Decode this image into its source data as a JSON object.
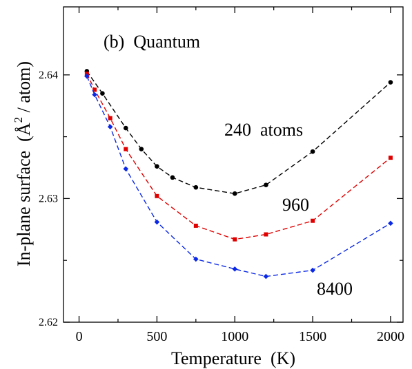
{
  "chart_data": {
    "type": "line",
    "panel_label": "(b)  Quantum",
    "xlabel": "Temperature  (K)",
    "ylabel_prefix": "In-plane surface  (",
    "ylabel_unit_letter": "Å",
    "ylabel_superscript": "2",
    "ylabel_suffix": " / atom)",
    "xlim": [
      -100,
      2080
    ],
    "ylim": [
      2.62,
      2.6455
    ],
    "x_major_ticks": [
      0,
      500,
      1000,
      1500,
      2000
    ],
    "x_tick_labels": [
      "0",
      "500",
      "1000",
      "1500",
      "2000"
    ],
    "x_minor_ticks": [
      250,
      750,
      1250,
      1750
    ],
    "y_major_ticks": [
      2.62,
      2.63,
      2.64
    ],
    "y_tick_labels": [
      "2.62",
      "2.63",
      "2.64"
    ],
    "y_minor_ticks": [
      2.625,
      2.635
    ],
    "grid": false,
    "legend": "none",
    "series": [
      {
        "name": "240  atoms",
        "color": "#000000",
        "marker": "circle",
        "x": [
          50,
          150,
          300,
          400,
          500,
          600,
          750,
          1000,
          1200,
          1500,
          2000
        ],
        "y": [
          2.6403,
          2.6385,
          2.6357,
          2.634,
          2.6326,
          2.6317,
          2.6309,
          2.6304,
          2.6311,
          2.6338,
          2.6394
        ]
      },
      {
        "name": "960",
        "color": "#e00000",
        "marker": "square",
        "x": [
          50,
          100,
          200,
          300,
          500,
          750,
          1000,
          1200,
          1500,
          2000
        ],
        "y": [
          2.6401,
          2.6388,
          2.6365,
          2.634,
          2.6302,
          2.6278,
          2.6267,
          2.6271,
          2.6282,
          2.6333
        ]
      },
      {
        "name": "8400",
        "color": "#0a28e6",
        "marker": "diamond",
        "x": [
          50,
          100,
          200,
          300,
          500,
          750,
          1000,
          1200,
          1500,
          2000
        ],
        "y": [
          2.6399,
          2.6384,
          2.6358,
          2.6324,
          2.6281,
          2.6251,
          2.6243,
          2.6237,
          2.6242,
          2.628
        ]
      }
    ],
    "annotations": [
      {
        "text": "240  atoms",
        "series": 0
      },
      {
        "text": "960",
        "series": 1
      },
      {
        "text": "8400",
        "series": 2
      }
    ]
  }
}
